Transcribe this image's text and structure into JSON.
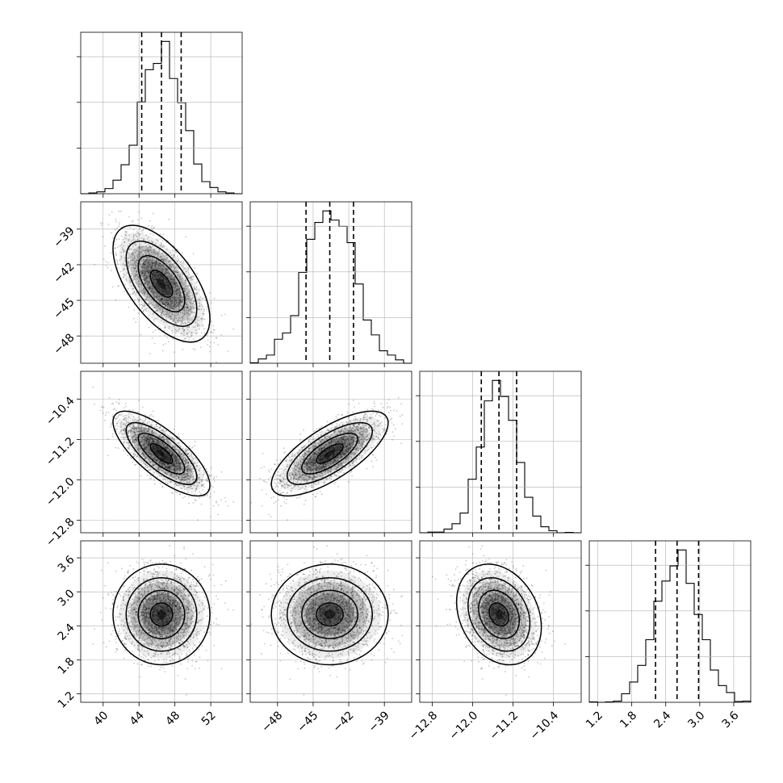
{
  "chart_data": {
    "type": "corner",
    "parameters": [
      {
        "mean": 46.5,
        "sd": 2.25,
        "range": [
          37.5,
          55.5
        ],
        "ticks": [
          40,
          44,
          48,
          52
        ],
        "tick_labels": [
          "40",
          "44",
          "48",
          "52"
        ],
        "quantiles": [
          44.3,
          46.5,
          48.7
        ]
      },
      {
        "mean": -43.6,
        "sd": 2.05,
        "range": [
          -50.3,
          -36.7
        ],
        "ticks": [
          -48,
          -45,
          -42,
          -39
        ],
        "tick_labels": [
          "−48",
          "−45",
          "−42",
          "−39"
        ],
        "quantiles": [
          -45.6,
          -43.6,
          -41.6
        ]
      },
      {
        "mean": -11.48,
        "sd": 0.35,
        "range": [
          -13.05,
          -9.85
        ],
        "ticks": [
          -12.8,
          -12.0,
          -11.2,
          -10.4
        ],
        "tick_labels": [
          "−12.8",
          "−12.0",
          "−11.2",
          "−10.4"
        ],
        "quantiles": [
          -11.83,
          -11.48,
          -11.13
        ]
      },
      {
        "mean": 2.6,
        "sd": 0.37,
        "range": [
          1.05,
          3.9
        ],
        "ticks": [
          1.2,
          1.8,
          2.4,
          3.0,
          3.6
        ],
        "tick_labels": [
          "1.2",
          "1.8",
          "2.4",
          "3.0",
          "3.6"
        ],
        "quantiles": [
          2.22,
          2.6,
          2.98
        ]
      }
    ],
    "correlations": [
      [
        1.0,
        -0.6,
        -0.75,
        0.0
      ],
      [
        -0.6,
        1.0,
        0.72,
        0.0
      ],
      [
        -0.75,
        0.72,
        1.0,
        -0.25
      ],
      [
        0.0,
        0.0,
        -0.25,
        1.0
      ]
    ],
    "histogram_bins": 20,
    "samples_shown": 2500,
    "grid": true,
    "colors": {
      "points": "#000000",
      "lines": "#000000",
      "grid": "#b0b0b0"
    }
  }
}
